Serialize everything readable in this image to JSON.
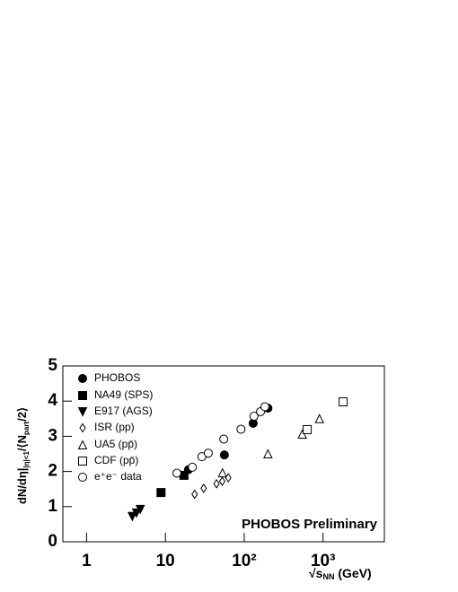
{
  "chart_data": {
    "type": "scatter",
    "xlabel": {
      "main": "√s",
      "sub": "NN",
      "unit": " (GeV)"
    },
    "ylabel": {
      "main": "dN/dη|",
      "sub": "|η|<1",
      "mid": "/⟨N",
      "sub2": "part",
      "end": "/2⟩"
    },
    "annotation": "PHOBOS Preliminary",
    "xscale": "log",
    "xlim": [
      0.5,
      6000
    ],
    "ylim": [
      0,
      5
    ],
    "xticks": [
      1,
      10,
      {
        "value": 100,
        "label": "10²"
      },
      {
        "value": 1000,
        "label": "10³"
      }
    ],
    "yticks": [
      0,
      1,
      2,
      3,
      4,
      5
    ],
    "series": [
      {
        "name": "PHOBOS",
        "color": "#000000",
        "marker": "circle-filled",
        "x": [
          19.6,
          56,
          130,
          200
        ],
        "y": [
          2.05,
          2.47,
          3.37,
          3.8
        ]
      },
      {
        "name": "NA49 (SPS)",
        "color": "#000000",
        "marker": "square-filled",
        "x": [
          8.8,
          17.2
        ],
        "y": [
          1.4,
          1.89
        ]
      },
      {
        "name": "E917 (AGS)",
        "color": "#000000",
        "marker": "triangle-down-filled",
        "x": [
          3.8,
          4.3,
          4.8
        ],
        "y": [
          0.72,
          0.82,
          0.92
        ]
      },
      {
        "name": "ISR (pp)",
        "color": "#000000",
        "marker": "diamond-open",
        "x": [
          23.5,
          30.6,
          44.5,
          52.6,
          62.7
        ],
        "y": [
          1.35,
          1.52,
          1.65,
          1.72,
          1.82
        ]
      },
      {
        "name": "UA5 (pp̄)",
        "color": "#000000",
        "marker": "triangle-up-open",
        "x": [
          53,
          200,
          546,
          900
        ],
        "y": [
          1.96,
          2.5,
          3.06,
          3.5
        ]
      },
      {
        "name": "CDF (pp̄)",
        "color": "#000000",
        "marker": "square-open",
        "x": [
          630,
          1800
        ],
        "y": [
          3.19,
          3.98
        ]
      },
      {
        "name": "e⁺e⁻ data",
        "color": "#000000",
        "marker": "circle-open",
        "x": [
          14,
          22,
          29,
          35,
          55,
          91,
          133,
          161,
          183
        ],
        "y": [
          1.95,
          2.12,
          2.42,
          2.52,
          2.92,
          3.2,
          3.57,
          3.7,
          3.84
        ]
      }
    ]
  }
}
